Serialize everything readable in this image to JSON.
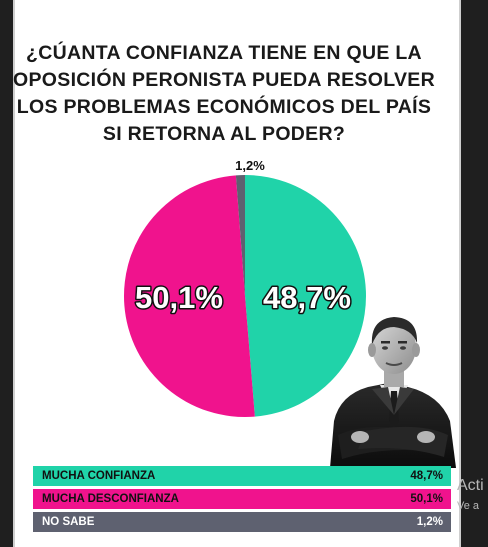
{
  "title": "¿CÚANTA CONFIANZA TIENE EN QUE LA\nOPOSICIÓN PERONISTA PUEDA RESOLVER\nLOS PROBLEMAS ECONÓMICOS DEL PAÍS\nSI RETORNA AL PODER?",
  "chart_data": {
    "type": "pie",
    "slices": [
      {
        "label": "MUCHA CONFIANZA",
        "value": 48.7,
        "display": "48,7%",
        "color": "#20d3a9"
      },
      {
        "label": "MUCHA DESCONFIANZA",
        "value": 50.1,
        "display": "50,1%",
        "color": "#f0138d"
      },
      {
        "label": "NO SABE",
        "value": 1.2,
        "display": "1,2%",
        "color": "#5e6170"
      }
    ]
  },
  "legend": [
    {
      "label": "MUCHA CONFIANZA",
      "value": "48,7%",
      "color": "#20d3a9"
    },
    {
      "label": "MUCHA DESCONFIANZA",
      "value": "50,1%",
      "color": "#f0138d"
    },
    {
      "label": "NO SABE",
      "value": "1,2%",
      "color": "#5e6170"
    }
  ],
  "overlay": {
    "activate_text": "Acti",
    "activate_sub": "Ve a"
  }
}
